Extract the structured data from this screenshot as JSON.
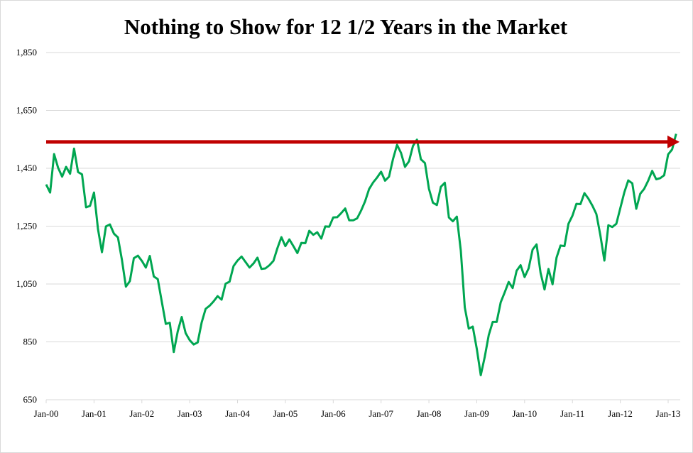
{
  "chart_data": {
    "type": "line",
    "title": "Nothing to Show for 12 1/2 Years in the Market",
    "xlabel": "",
    "ylabel": "",
    "ylim": [
      650,
      1850
    ],
    "y_ticks": [
      "1,850",
      "1,650",
      "1,450",
      "1,250",
      "1,050",
      "850",
      "650"
    ],
    "y_tick_values": [
      1850,
      1650,
      1450,
      1250,
      1050,
      850,
      650
    ],
    "x_ticks": [
      "Jan-00",
      "Jan-01",
      "Jan-02",
      "Jan-03",
      "Jan-04",
      "Jan-05",
      "Jan-06",
      "Jan-07",
      "Jan-08",
      "Jan-09",
      "Jan-10",
      "Jan-11",
      "Jan-12",
      "Jan-13"
    ],
    "grid": true,
    "legend": "none",
    "series": [
      {
        "color": "#00A651",
        "monthly_by_year": [
          {
            "year": 2000,
            "values": [
              1394,
              1366,
              1499,
              1452,
              1421,
              1455,
              1431,
              1518,
              1437,
              1429,
              1315,
              1320
            ]
          },
          {
            "year": 2001,
            "values": [
              1366,
              1240,
              1160,
              1249,
              1256,
              1224,
              1211,
              1134,
              1041,
              1060,
              1139,
              1148
            ]
          },
          {
            "year": 2002,
            "values": [
              1130,
              1107,
              1147,
              1076,
              1067,
              990,
              912,
              916,
              815,
              886,
              936,
              880
            ]
          },
          {
            "year": 2003,
            "values": [
              856,
              841,
              848,
              917,
              964,
              975,
              990,
              1008,
              996,
              1051,
              1058,
              1112
            ]
          },
          {
            "year": 2004,
            "values": [
              1131,
              1145,
              1126,
              1107,
              1121,
              1141,
              1102,
              1104,
              1115,
              1130,
              1174,
              1212
            ]
          },
          {
            "year": 2005,
            "values": [
              1181,
              1204,
              1181,
              1157,
              1192,
              1191,
              1234,
              1220,
              1229,
              1207,
              1249,
              1248
            ]
          },
          {
            "year": 2006,
            "values": [
              1280,
              1281,
              1295,
              1311,
              1270,
              1270,
              1277,
              1304,
              1336,
              1378,
              1401,
              1418
            ]
          },
          {
            "year": 2007,
            "values": [
              1438,
              1407,
              1421,
              1482,
              1531,
              1503,
              1455,
              1474,
              1527,
              1549,
              1481,
              1468
            ]
          },
          {
            "year": 2008,
            "values": [
              1379,
              1331,
              1323,
              1386,
              1400,
              1280,
              1267,
              1283,
              1165,
              969,
              896,
              903
            ]
          },
          {
            "year": 2009,
            "values": [
              826,
              735,
              798,
              873,
              919,
              919,
              987,
              1021,
              1057,
              1036,
              1096,
              1115
            ]
          },
          {
            "year": 2010,
            "values": [
              1074,
              1104,
              1169,
              1187,
              1089,
              1031,
              1102,
              1049,
              1141,
              1183,
              1181,
              1258
            ]
          },
          {
            "year": 2011,
            "values": [
              1286,
              1327,
              1326,
              1364,
              1345,
              1321,
              1292,
              1219,
              1131,
              1253,
              1247,
              1258
            ]
          },
          {
            "year": 2012,
            "values": [
              1312,
              1366,
              1408,
              1398,
              1310,
              1362,
              1379,
              1407,
              1441,
              1412,
              1416,
              1426
            ]
          },
          {
            "year": 2013,
            "values": [
              1498,
              1515,
              1569
            ]
          }
        ]
      }
    ],
    "annotations": [
      {
        "type": "horizontal-arrow",
        "value": 1541,
        "color": "#C00000"
      }
    ]
  }
}
